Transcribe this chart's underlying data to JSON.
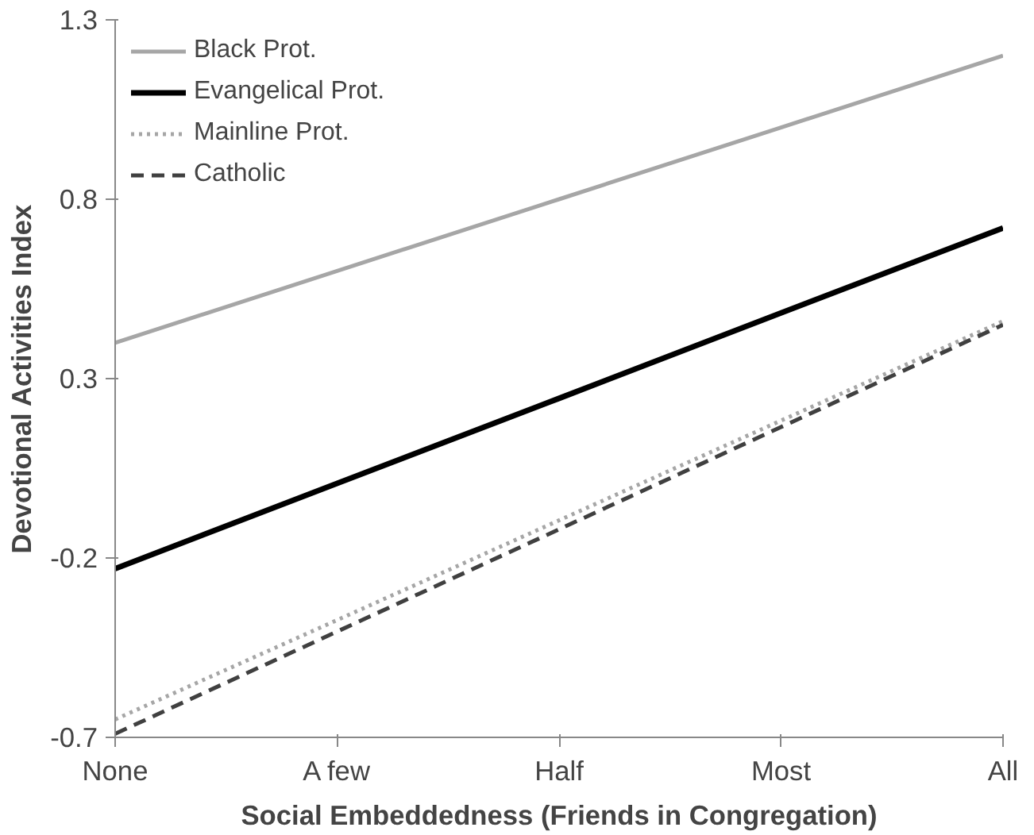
{
  "chart_data": {
    "type": "line",
    "xlabel": "Social Embeddedness (Friends in Congregation)",
    "ylabel": "Devotional Activities Index",
    "categories": [
      "None",
      "A few",
      "Half",
      "Most",
      "All"
    ],
    "ylim": [
      -0.7,
      1.3
    ],
    "yticks": [
      {
        "value": -0.7,
        "label": "-0.7"
      },
      {
        "value": -0.2,
        "label": "-0.2"
      },
      {
        "value": 0.3,
        "label": "0.3"
      },
      {
        "value": 0.8,
        "label": "0.8"
      },
      {
        "value": 1.3,
        "label": "1.3"
      }
    ],
    "grid": false,
    "legend": "top left",
    "marker": "none",
    "series": [
      {
        "name": "Black Prot.",
        "color": "#a6a6a6",
        "line_style": "solid",
        "values": [
          0.4,
          0.6,
          0.8,
          1.0,
          1.2
        ]
      },
      {
        "name": "Evangelical Prot.",
        "color": "#000000",
        "line_style": "solid",
        "values": [
          -0.23,
          0.008,
          0.245,
          0.483,
          0.72
        ]
      },
      {
        "name": "Mainline Prot.",
        "color": "#a6a6a6",
        "line_style": "dotted",
        "values": [
          -0.65,
          -0.373,
          -0.095,
          0.183,
          0.46
        ]
      },
      {
        "name": "Catholic",
        "color": "#404040",
        "line_style": "dashed",
        "values": [
          -0.69,
          -0.405,
          -0.12,
          0.165,
          0.45
        ]
      }
    ]
  }
}
